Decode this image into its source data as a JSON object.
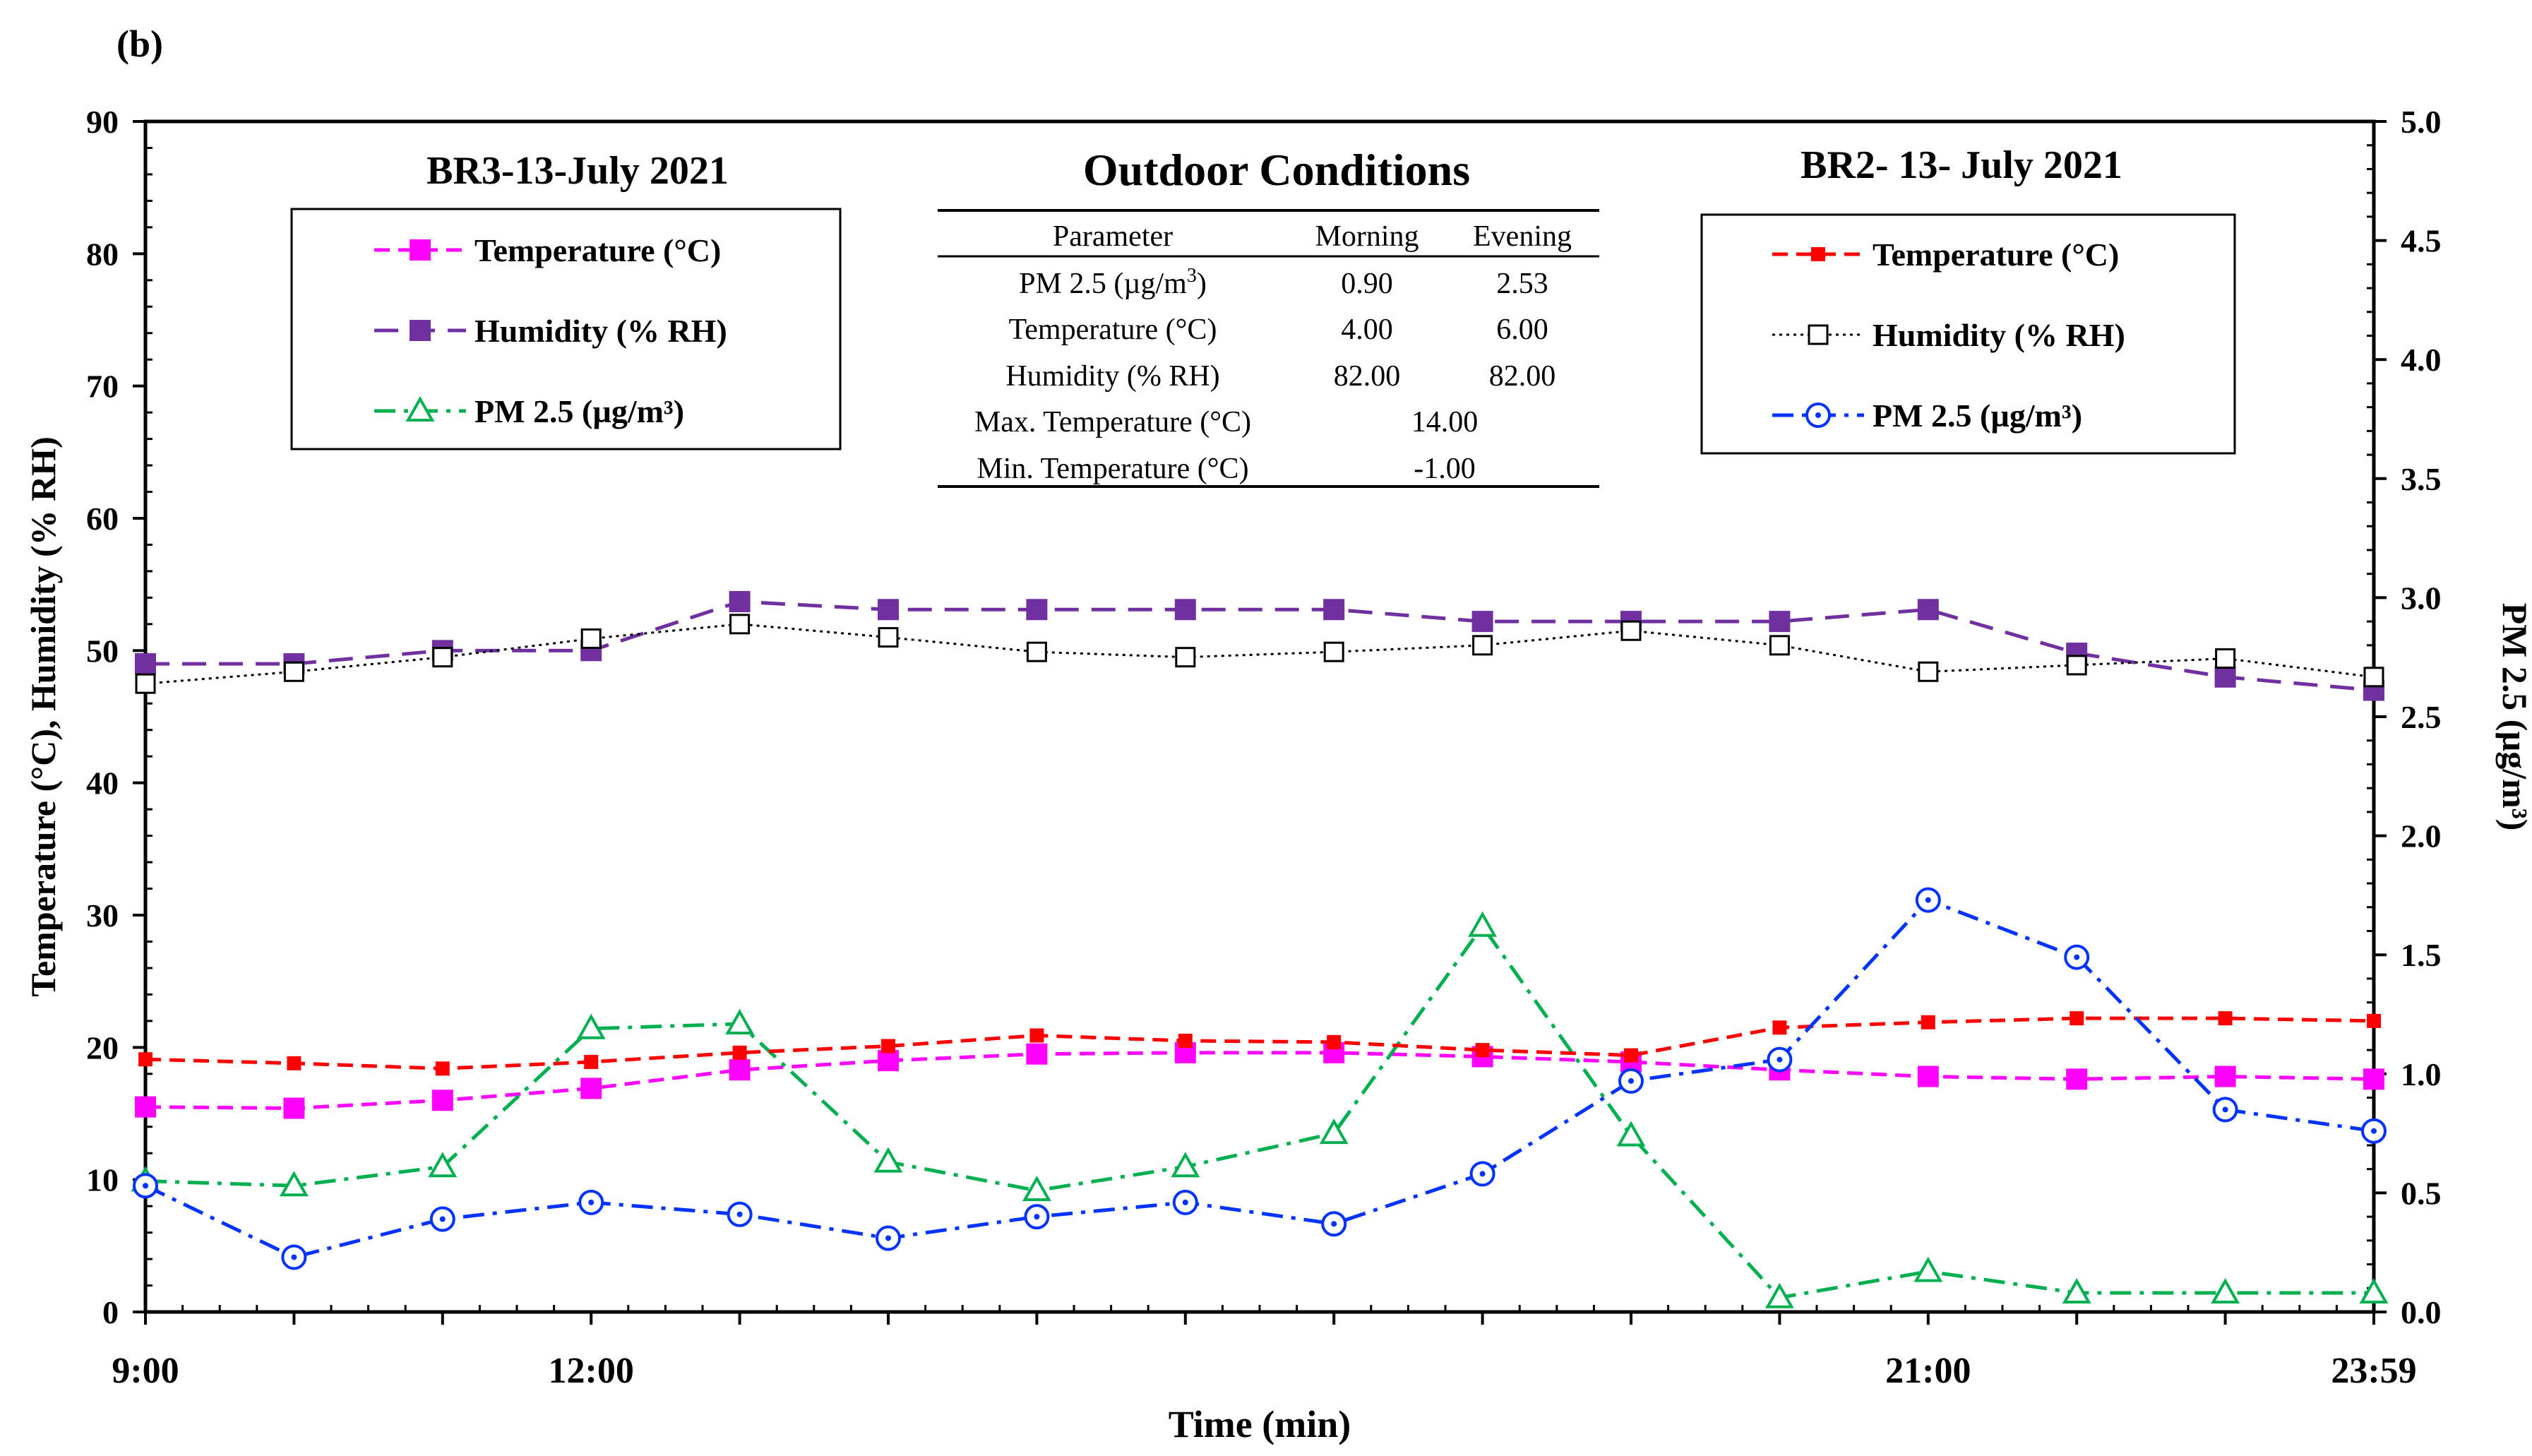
{
  "panel_label": "(b)",
  "chart_data": {
    "type": "line",
    "xlabel": "Time (min)",
    "ylabel_left": "Temperature (°C), Humidity (% RH)",
    "ylabel_right": "PM 2.5 (µg/m³)",
    "x_tick_labels": [
      "9:00",
      "12:00",
      "21:00",
      "23:59"
    ],
    "x_tick_positions": [
      0,
      3,
      12,
      15
    ],
    "x_range": [
      0,
      15
    ],
    "ylim_left": [
      0,
      90
    ],
    "ylim_right": [
      0,
      5
    ],
    "y_ticks_left": [
      0,
      10,
      20,
      30,
      40,
      50,
      60,
      70,
      80,
      90
    ],
    "y_ticks_right": [
      "0.0",
      "0.5",
      "1.0",
      "1.5",
      "2.0",
      "2.5",
      "3.0",
      "3.5",
      "4.0",
      "4.5",
      "5.0"
    ],
    "x": [
      0,
      1,
      2,
      3,
      4,
      5,
      6,
      7,
      8,
      9,
      10,
      11,
      12,
      13,
      14,
      15
    ],
    "series": [
      {
        "id": "br3_temp",
        "name": "Temperature (°C)",
        "group": "BR3",
        "axis": "left",
        "color": "#ff00ff",
        "marker": "filled-square",
        "dash": "dash",
        "values": [
          15.5,
          15.4,
          16.0,
          16.9,
          18.3,
          19.0,
          19.5,
          19.6,
          19.6,
          19.3,
          18.9,
          18.3,
          17.8,
          17.6,
          17.8,
          17.6
        ]
      },
      {
        "id": "br3_hum",
        "name": "Humidity (% RH)",
        "group": "BR3",
        "axis": "left",
        "color": "#7030a0",
        "marker": "filled-square",
        "dash": "longdash",
        "values": [
          49.0,
          49.0,
          50.0,
          50.0,
          53.7,
          53.1,
          53.1,
          53.1,
          53.1,
          52.2,
          52.2,
          52.2,
          53.1,
          49.8,
          48.0,
          47.0
        ]
      },
      {
        "id": "br3_pm",
        "name": "PM 2.5 (µg/m³)",
        "group": "BR3",
        "axis": "right",
        "color": "#00b050",
        "marker": "open-triangle",
        "dash": "dashdot",
        "values": [
          0.55,
          0.53,
          0.61,
          1.19,
          1.21,
          0.63,
          0.51,
          0.61,
          0.75,
          1.62,
          0.74,
          0.06,
          0.17,
          0.08,
          0.08,
          0.08
        ]
      },
      {
        "id": "br2_temp",
        "name": "Temperature (°C)",
        "group": "BR2",
        "axis": "left",
        "color": "#ff0000",
        "marker": "filled-square-small",
        "dash": "dash",
        "values": [
          19.1,
          18.8,
          18.4,
          18.9,
          19.6,
          20.1,
          20.9,
          20.5,
          20.4,
          19.8,
          19.4,
          21.5,
          21.9,
          22.2,
          22.2,
          22.0
        ]
      },
      {
        "id": "br2_hum",
        "name": "Humidity (% RH)",
        "group": "BR2",
        "axis": "left",
        "color": "#000000",
        "marker": "open-square",
        "dash": "dotted",
        "values": [
          47.5,
          48.4,
          49.5,
          50.9,
          52.0,
          51.0,
          49.9,
          49.5,
          49.9,
          50.4,
          51.5,
          50.4,
          48.4,
          48.9,
          49.4,
          48.0
        ]
      },
      {
        "id": "br2_pm",
        "name": "PM 2.5 (µg/m³)",
        "group": "BR2",
        "axis": "right",
        "color": "#0033ff",
        "marker": "open-circle-dot",
        "dash": "dashdot",
        "values": [
          0.53,
          0.23,
          0.39,
          0.46,
          0.41,
          0.31,
          0.4,
          0.46,
          0.37,
          0.58,
          0.97,
          1.06,
          1.73,
          1.49,
          0.85,
          0.76
        ]
      }
    ],
    "legend_left": {
      "title": "BR3-13-July 2021",
      "placement": "top-left",
      "entries": [
        "Temperature (°C)",
        "Humidity (% RH)",
        "PM 2.5 (µg/m³)"
      ]
    },
    "legend_right": {
      "title": "BR2- 13- July 2021",
      "placement": "top-right",
      "entries": [
        "Temperature (°C)",
        "Humidity (% RH)",
        "PM 2.5 (µg/m³)"
      ]
    },
    "outdoor_table": {
      "title": "Outdoor Conditions",
      "headers": [
        "Parameter",
        "Morning",
        "Evening"
      ],
      "rows": [
        {
          "label": "PM 2.5 (µg/m",
          "sup": "3",
          "label_end": ")",
          "morning": "0.90",
          "evening": "2.53"
        },
        {
          "label": "Temperature (°C)",
          "sup": "",
          "label_end": "",
          "morning": "4.00",
          "evening": "6.00"
        },
        {
          "label": "Humidity (% RH)",
          "sup": "",
          "label_end": "",
          "morning": "82.00",
          "evening": "82.00"
        },
        {
          "label": "Max. Temperature (°C)",
          "sup": "",
          "label_end": "",
          "span": "14.00"
        },
        {
          "label": "Min. Temperature (°C)",
          "sup": "",
          "label_end": "",
          "span": "-1.00"
        }
      ]
    }
  }
}
